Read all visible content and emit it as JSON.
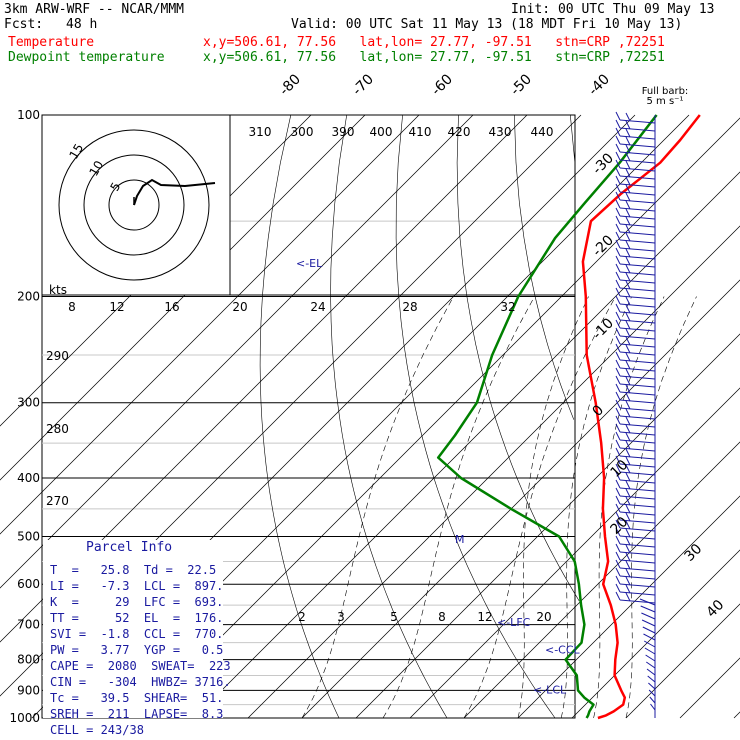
{
  "header": {
    "model": "3km ARW-WRF -- NCAR/MMM",
    "init": "Init: 00 UTC Thu 09 May 13",
    "fcst_label": "Fcst:",
    "fcst_value": "48 h",
    "valid": "Valid: 00 UTC Sat 11 May 13 (18 MDT Fri 10 May 13)",
    "temp_label": "Temperature",
    "temp_info": "x,y=506.61, 77.56   lat,lon= 27.77, -97.51   stn=CRP ,72251",
    "dew_label": "Dewpoint temperature",
    "dew_info": "x,y=506.61, 77.56   lat,lon= 27.77, -97.51   stn=CRP ,72251"
  },
  "colors": {
    "temperature": "#ff0000",
    "dewpoint": "#008000",
    "parcel_text": "#1a1aa0"
  },
  "barb_legend": {
    "line1": "Full barb:",
    "line2": "5 m s⁻¹"
  },
  "chart_data": {
    "type": "skew-t",
    "pressure_labels": [
      "100",
      "200",
      "300",
      "400",
      "500",
      "600",
      "700",
      "800",
      "900",
      "1000"
    ],
    "pressures": [
      100,
      200,
      300,
      400,
      500,
      600,
      700,
      800,
      900,
      1000
    ],
    "isotherm_labels": [
      "-80",
      "-70",
      "-60",
      "-50",
      "-40",
      "-30",
      "-20",
      "-10",
      "0",
      "10",
      "20",
      "30",
      "40"
    ],
    "isotherms": [
      -80,
      -70,
      -60,
      -50,
      -40,
      -30,
      -20,
      -10,
      0,
      10,
      20,
      30,
      40
    ],
    "theta_labels": [
      "310",
      "300",
      "390",
      "400",
      "410",
      "420",
      "430",
      "440"
    ],
    "inset_wind_labels": [
      "kts",
      "8",
      "12",
      "16",
      "20",
      "24",
      "28",
      "32"
    ],
    "hodo_labels": [
      "290",
      "280",
      "270"
    ],
    "mixing_ratio_labels": [
      "2",
      "3",
      "5",
      "8",
      "12",
      "20"
    ],
    "level_markers": [
      {
        "label": "<-EL",
        "p": 176
      },
      {
        "label": "<-LFC",
        "p": 693
      },
      {
        "label": "<-CCL",
        "p": 770
      },
      {
        "label": "<-LCL",
        "p": 897
      },
      {
        "label": "M",
        "p": 505
      }
    ],
    "hodograph_rings": [
      "5",
      "10",
      "15"
    ],
    "temperature": [
      {
        "p": 1000,
        "t": 24.8
      },
      {
        "p": 990,
        "t": 25.8
      },
      {
        "p": 975,
        "t": 26.5
      },
      {
        "p": 950,
        "t": 27.0
      },
      {
        "p": 925,
        "t": 26.0
      },
      {
        "p": 900,
        "t": 24.0
      },
      {
        "p": 850,
        "t": 20.0
      },
      {
        "p": 800,
        "t": 17.2
      },
      {
        "p": 750,
        "t": 14.5
      },
      {
        "p": 700,
        "t": 10.8
      },
      {
        "p": 650,
        "t": 6.3
      },
      {
        "p": 600,
        "t": 1.0
      },
      {
        "p": 550,
        "t": -2.3
      },
      {
        "p": 500,
        "t": -7.5
      },
      {
        "p": 450,
        "t": -13.0
      },
      {
        "p": 400,
        "t": -18.5
      },
      {
        "p": 350,
        "t": -25.5
      },
      {
        "p": 300,
        "t": -34.0
      },
      {
        "p": 250,
        "t": -44.5
      },
      {
        "p": 200,
        "t": -55.5
      },
      {
        "p": 175,
        "t": -62.5
      },
      {
        "p": 150,
        "t": -68.5
      },
      {
        "p": 135,
        "t": -68.0
      },
      {
        "p": 120,
        "t": -66.5
      },
      {
        "p": 110,
        "t": -67.0
      },
      {
        "p": 100,
        "t": -68.0
      }
    ],
    "dewpoint": [
      {
        "p": 1000,
        "t": 22.7
      },
      {
        "p": 990,
        "t": 22.5
      },
      {
        "p": 975,
        "t": 22.0
      },
      {
        "p": 950,
        "t": 21.5
      },
      {
        "p": 925,
        "t": 18.5
      },
      {
        "p": 900,
        "t": 16.0
      },
      {
        "p": 850,
        "t": 13.0
      },
      {
        "p": 800,
        "t": 8.0
      },
      {
        "p": 750,
        "t": 7.8
      },
      {
        "p": 700,
        "t": 5.0
      },
      {
        "p": 650,
        "t": 0.8
      },
      {
        "p": 600,
        "t": -3.5
      },
      {
        "p": 550,
        "t": -8.5
      },
      {
        "p": 500,
        "t": -16.0
      },
      {
        "p": 450,
        "t": -30.0
      },
      {
        "p": 400,
        "t": -45.0
      },
      {
        "p": 370,
        "t": -53.0
      },
      {
        "p": 340,
        "t": -54.0
      },
      {
        "p": 300,
        "t": -56.0
      },
      {
        "p": 250,
        "t": -62.0
      },
      {
        "p": 200,
        "t": -68.0
      },
      {
        "p": 160,
        "t": -72.0
      },
      {
        "p": 140,
        "t": -73.0
      },
      {
        "p": 120,
        "t": -74.0
      },
      {
        "p": 100,
        "t": -76.0
      }
    ]
  },
  "parcel_info": {
    "title": "Parcel Info",
    "rows": [
      "T  =   25.8  Td =  22.5",
      "LI =   -7.3  LCL =  897.",
      "K  =     29  LFC =  693.",
      "TT =     52  EL  =  176.",
      "SVI =  -1.8  CCL =  770.",
      "PW =   3.77  YGP =   0.5",
      "CAPE =  2080  SWEAT=  223",
      "CIN =   -304  HWBZ= 3716.",
      "Tc =   39.5  SHEAR=  51.",
      "SREH =  211  LAPSE=  8.3",
      "CELL = 243/38"
    ]
  }
}
